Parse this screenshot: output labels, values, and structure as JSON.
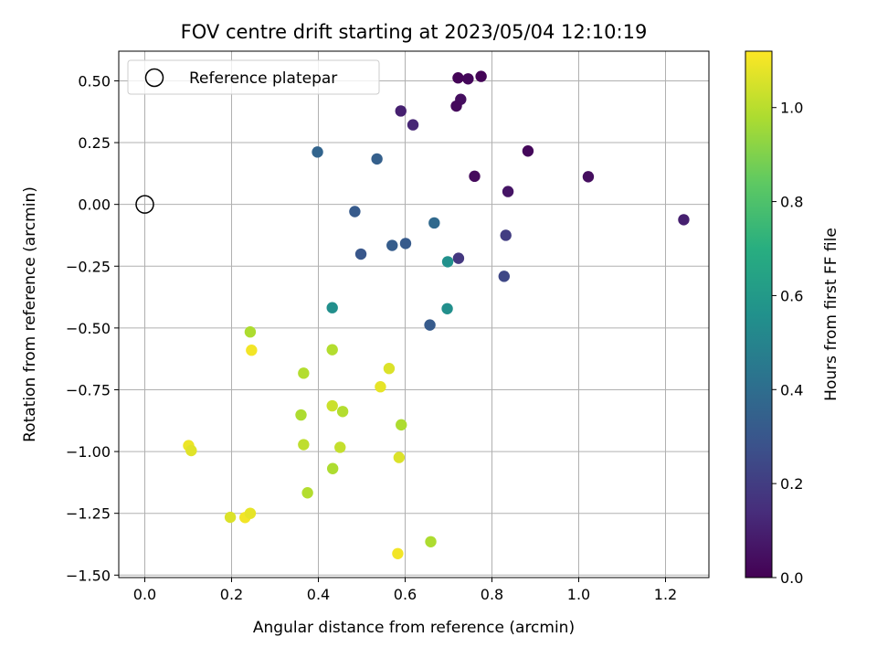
{
  "chart_data": {
    "type": "scatter",
    "title": "FOV centre drift starting at 2023/05/04 12:10:19",
    "xlabel": "Angular distance from reference (arcmin)",
    "ylabel": "Rotation from reference (arcmin)",
    "xlim": [
      -0.06,
      1.3
    ],
    "ylim": [
      -1.51,
      0.62
    ],
    "xticks": [
      0.0,
      0.2,
      0.4,
      0.6,
      0.8,
      1.0,
      1.2
    ],
    "xtick_labels": [
      "0.0",
      "0.2",
      "0.4",
      "0.6",
      "0.8",
      "1.0",
      "1.2"
    ],
    "yticks": [
      0.5,
      0.25,
      0.0,
      -0.25,
      -0.5,
      -0.75,
      -1.0,
      -1.25,
      -1.5
    ],
    "ytick_labels": [
      "0.50",
      "0.25",
      "0.00",
      "−0.25",
      "−0.50",
      "−0.75",
      "−1.00",
      "−1.25",
      "−1.50"
    ],
    "grid": true,
    "legend_position": "top-left",
    "colormap": "viridis",
    "colorbar": {
      "label": "Hours from first FF file",
      "range": [
        0.0,
        1.12
      ],
      "ticks": [
        0.0,
        0.2,
        0.4,
        0.6,
        0.8,
        1.0
      ],
      "tick_labels": [
        "0.0",
        "0.2",
        "0.4",
        "0.6",
        "0.8",
        "1.0"
      ]
    },
    "reference": {
      "label": "Reference platepar",
      "x": 0.0,
      "y": 0.0
    },
    "points": [
      {
        "x": 0.722,
        "y": 0.512,
        "t": 0.01
      },
      {
        "x": 0.745,
        "y": 0.508,
        "t": 0.02
      },
      {
        "x": 0.775,
        "y": 0.518,
        "t": 0.01
      },
      {
        "x": 0.728,
        "y": 0.425,
        "t": 0.04
      },
      {
        "x": 0.718,
        "y": 0.398,
        "t": 0.03
      },
      {
        "x": 0.59,
        "y": 0.378,
        "t": 0.1
      },
      {
        "x": 0.618,
        "y": 0.322,
        "t": 0.12
      },
      {
        "x": 0.883,
        "y": 0.216,
        "t": 0.02
      },
      {
        "x": 0.76,
        "y": 0.114,
        "t": 0.03
      },
      {
        "x": 1.022,
        "y": 0.112,
        "t": 0.04
      },
      {
        "x": 0.837,
        "y": 0.052,
        "t": 0.06
      },
      {
        "x": 1.242,
        "y": -0.062,
        "t": 0.1
      },
      {
        "x": 0.832,
        "y": -0.125,
        "t": 0.2
      },
      {
        "x": 0.723,
        "y": -0.218,
        "t": 0.18
      },
      {
        "x": 0.828,
        "y": -0.291,
        "t": 0.24
      },
      {
        "x": 0.398,
        "y": 0.212,
        "t": 0.36
      },
      {
        "x": 0.535,
        "y": 0.184,
        "t": 0.34
      },
      {
        "x": 0.484,
        "y": -0.029,
        "t": 0.32
      },
      {
        "x": 0.667,
        "y": -0.075,
        "t": 0.38
      },
      {
        "x": 0.498,
        "y": -0.201,
        "t": 0.3
      },
      {
        "x": 0.57,
        "y": -0.166,
        "t": 0.33
      },
      {
        "x": 0.601,
        "y": -0.158,
        "t": 0.32
      },
      {
        "x": 0.657,
        "y": -0.488,
        "t": 0.32
      },
      {
        "x": 0.698,
        "y": -0.232,
        "t": 0.56
      },
      {
        "x": 0.432,
        "y": -0.418,
        "t": 0.55
      },
      {
        "x": 0.697,
        "y": -0.422,
        "t": 0.55
      },
      {
        "x": 0.243,
        "y": -0.516,
        "t": 0.98
      },
      {
        "x": 0.246,
        "y": -0.59,
        "t": 1.1
      },
      {
        "x": 0.432,
        "y": -0.588,
        "t": 0.99
      },
      {
        "x": 0.366,
        "y": -0.683,
        "t": 0.99
      },
      {
        "x": 0.563,
        "y": -0.664,
        "t": 1.06
      },
      {
        "x": 0.543,
        "y": -0.738,
        "t": 1.08
      },
      {
        "x": 0.432,
        "y": -0.815,
        "t": 1.03
      },
      {
        "x": 0.456,
        "y": -0.838,
        "t": 0.99
      },
      {
        "x": 0.36,
        "y": -0.852,
        "t": 0.98
      },
      {
        "x": 0.591,
        "y": -0.892,
        "t": 0.98
      },
      {
        "x": 0.366,
        "y": -0.972,
        "t": 1.01
      },
      {
        "x": 0.45,
        "y": -0.983,
        "t": 1.02
      },
      {
        "x": 0.101,
        "y": -0.976,
        "t": 1.09
      },
      {
        "x": 0.107,
        "y": -0.996,
        "t": 1.07
      },
      {
        "x": 0.586,
        "y": -1.024,
        "t": 1.06
      },
      {
        "x": 0.433,
        "y": -1.069,
        "t": 0.98
      },
      {
        "x": 0.375,
        "y": -1.167,
        "t": 0.99
      },
      {
        "x": 0.197,
        "y": -1.266,
        "t": 1.06
      },
      {
        "x": 0.231,
        "y": -1.267,
        "t": 1.1
      },
      {
        "x": 0.243,
        "y": -1.25,
        "t": 1.08
      },
      {
        "x": 0.659,
        "y": -1.365,
        "t": 0.98
      },
      {
        "x": 0.583,
        "y": -1.413,
        "t": 1.1
      }
    ]
  }
}
